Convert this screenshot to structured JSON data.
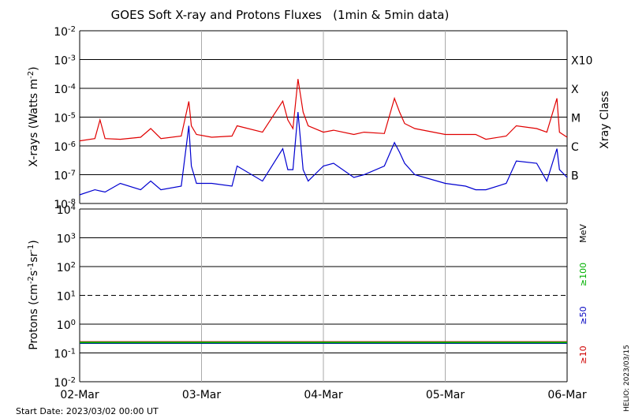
{
  "chart_data": [
    {
      "type": "line",
      "title": "GOES Soft X-ray and Protons Fluxes   (1min & 5min data)",
      "ylabel": "X-rays (Watts m-2)",
      "y_scale": "log",
      "ylim": [
        1e-08,
        0.01
      ],
      "grid": "horizontal at decades, vertical at day boundaries",
      "y_ticks": [
        {
          "base": "10",
          "exp": "-8",
          "value": 1e-08
        },
        {
          "base": "10",
          "exp": "-7",
          "value": 1e-07
        },
        {
          "base": "10",
          "exp": "-6",
          "value": 1e-06
        },
        {
          "base": "10",
          "exp": "-5",
          "value": 1e-05
        },
        {
          "base": "10",
          "exp": "-4",
          "value": 0.0001
        },
        {
          "base": "10",
          "exp": "-3",
          "value": 0.001
        },
        {
          "base": "10",
          "exp": "-2",
          "value": 0.01
        }
      ],
      "right_axis_label": "Xray Class",
      "class_labels": [
        {
          "label": "B",
          "value": 1e-07
        },
        {
          "label": "C",
          "value": 1e-06
        },
        {
          "label": "M",
          "value": 1e-05
        },
        {
          "label": "X",
          "value": 0.0001
        },
        {
          "label": "X10",
          "value": 0.001
        }
      ],
      "x_days": [
        "2023-03-02",
        "2023-03-03",
        "2023-03-04",
        "2023-03-05",
        "2023-03-06"
      ],
      "series": [
        {
          "color": "#e00000",
          "x": [
            "2023-03-02 00:00",
            "2023-03-02 03:00",
            "2023-03-02 04:00",
            "2023-03-02 05:00",
            "2023-03-02 08:00",
            "2023-03-02 12:00",
            "2023-03-02 14:00",
            "2023-03-02 16:00",
            "2023-03-02 20:00",
            "2023-03-02 21:30",
            "2023-03-02 22:00",
            "2023-03-02 23:00",
            "2023-03-03 02:00",
            "2023-03-03 06:00",
            "2023-03-03 07:00",
            "2023-03-03 12:00",
            "2023-03-03 16:00",
            "2023-03-03 17:00",
            "2023-03-03 18:00",
            "2023-03-03 19:00",
            "2023-03-03 20:00",
            "2023-03-03 21:00",
            "2023-03-04 00:00",
            "2023-03-04 02:00",
            "2023-03-04 06:00",
            "2023-03-04 08:00",
            "2023-03-04 12:00",
            "2023-03-04 14:00",
            "2023-03-04 15:00",
            "2023-03-04 16:00",
            "2023-03-04 18:00",
            "2023-03-05 00:00",
            "2023-03-05 04:00",
            "2023-03-05 06:00",
            "2023-03-05 08:00",
            "2023-03-05 12:00",
            "2023-03-05 14:00",
            "2023-03-05 18:00",
            "2023-03-05 20:00",
            "2023-03-05 22:00",
            "2023-03-05 22:30",
            "2023-03-06 00:00"
          ],
          "y": [
            1.5e-06,
            1.8e-06,
            8e-06,
            1.8e-06,
            1.7e-06,
            2e-06,
            4e-06,
            1.8e-06,
            2.2e-06,
            3.5e-05,
            5e-06,
            2.5e-06,
            2e-06,
            2.2e-06,
            5e-06,
            3e-06,
            3.6e-05,
            8e-06,
            4e-06,
            0.00021,
            1.5e-05,
            5e-06,
            3e-06,
            3.5e-06,
            2.5e-06,
            3e-06,
            2.7e-06,
            4.5e-05,
            1.5e-05,
            6e-06,
            4e-06,
            2.5e-06,
            2.5e-06,
            2.5e-06,
            1.7e-06,
            2.2e-06,
            5e-06,
            4e-06,
            3e-06,
            4.5e-05,
            3e-06,
            2e-06
          ]
        },
        {
          "color": "#0000d0",
          "x": [
            "2023-03-02 00:00",
            "2023-03-02 03:00",
            "2023-03-02 05:00",
            "2023-03-02 08:00",
            "2023-03-02 12:00",
            "2023-03-02 14:00",
            "2023-03-02 16:00",
            "2023-03-02 20:00",
            "2023-03-02 21:30",
            "2023-03-02 22:00",
            "2023-03-02 23:00",
            "2023-03-03 02:00",
            "2023-03-03 06:00",
            "2023-03-03 07:00",
            "2023-03-03 12:00",
            "2023-03-03 16:00",
            "2023-03-03 17:00",
            "2023-03-03 18:00",
            "2023-03-03 19:00",
            "2023-03-03 20:00",
            "2023-03-03 21:00",
            "2023-03-04 00:00",
            "2023-03-04 02:00",
            "2023-03-04 06:00",
            "2023-03-04 08:00",
            "2023-03-04 12:00",
            "2023-03-04 14:00",
            "2023-03-04 15:00",
            "2023-03-04 16:00",
            "2023-03-04 18:00",
            "2023-03-05 00:00",
            "2023-03-05 04:00",
            "2023-03-05 06:00",
            "2023-03-05 08:00",
            "2023-03-05 12:00",
            "2023-03-05 14:00",
            "2023-03-05 18:00",
            "2023-03-05 20:00",
            "2023-03-05 22:00",
            "2023-03-05 22:30",
            "2023-03-06 00:00"
          ],
          "y": [
            2e-08,
            3e-08,
            2.5e-08,
            5e-08,
            3e-08,
            6e-08,
            3e-08,
            4e-08,
            5e-06,
            2e-07,
            5e-08,
            5e-08,
            4e-08,
            2e-07,
            6e-08,
            8e-07,
            1.5e-07,
            1.5e-07,
            1.5e-05,
            1.5e-07,
            6e-08,
            2e-07,
            2.5e-07,
            8e-08,
            1e-07,
            2e-07,
            1.3e-06,
            6e-07,
            2.5e-07,
            1e-07,
            5e-08,
            4e-08,
            3e-08,
            3e-08,
            5e-08,
            3e-07,
            2.5e-07,
            6e-08,
            8e-07,
            1.5e-07,
            8e-08
          ]
        }
      ]
    },
    {
      "type": "line",
      "ylabel": "Protons (cm-2s-1sr-1)",
      "y_scale": "log",
      "ylim": [
        0.01,
        10000
      ],
      "y_ticks": [
        {
          "base": "10",
          "exp": "-2",
          "value": 0.01
        },
        {
          "base": "10",
          "exp": "-1",
          "value": 0.1
        },
        {
          "base": "10",
          "exp": "0",
          "value": 1
        },
        {
          "base": "10",
          "exp": "1",
          "value": 10
        },
        {
          "base": "10",
          "exp": "2",
          "value": 100
        },
        {
          "base": "10",
          "exp": "3",
          "value": 1000
        },
        {
          "base": "10",
          "exp": "4",
          "value": 10000
        }
      ],
      "threshold": {
        "value": 10,
        "style": "dashed"
      },
      "x_labels": [
        "02-Mar",
        "03-Mar",
        "04-Mar",
        "05-Mar",
        "06-Mar"
      ],
      "x_days": [
        "2023-03-02",
        "2023-03-03",
        "2023-03-04",
        "2023-03-05",
        "2023-03-06"
      ],
      "energy_unit": "MeV",
      "series": [
        {
          "name": "≥10",
          "color": "#d00000",
          "x": [
            "2023-03-02",
            "2023-03-06"
          ],
          "y": [
            0.24,
            0.24
          ]
        },
        {
          "name": "≥50",
          "color": "#0000c0",
          "x": [
            "2023-03-02",
            "2023-03-06"
          ],
          "y": [
            0.22,
            0.22
          ]
        },
        {
          "name": "≥100",
          "color": "#00b000",
          "x": [
            "2023-03-02",
            "2023-03-06"
          ],
          "y": [
            0.23,
            0.23
          ]
        }
      ]
    }
  ],
  "footer": {
    "start_date": "Start Date: 2023/03/02 00:00 UT",
    "credit": "HELIO: 2023/03/15"
  }
}
